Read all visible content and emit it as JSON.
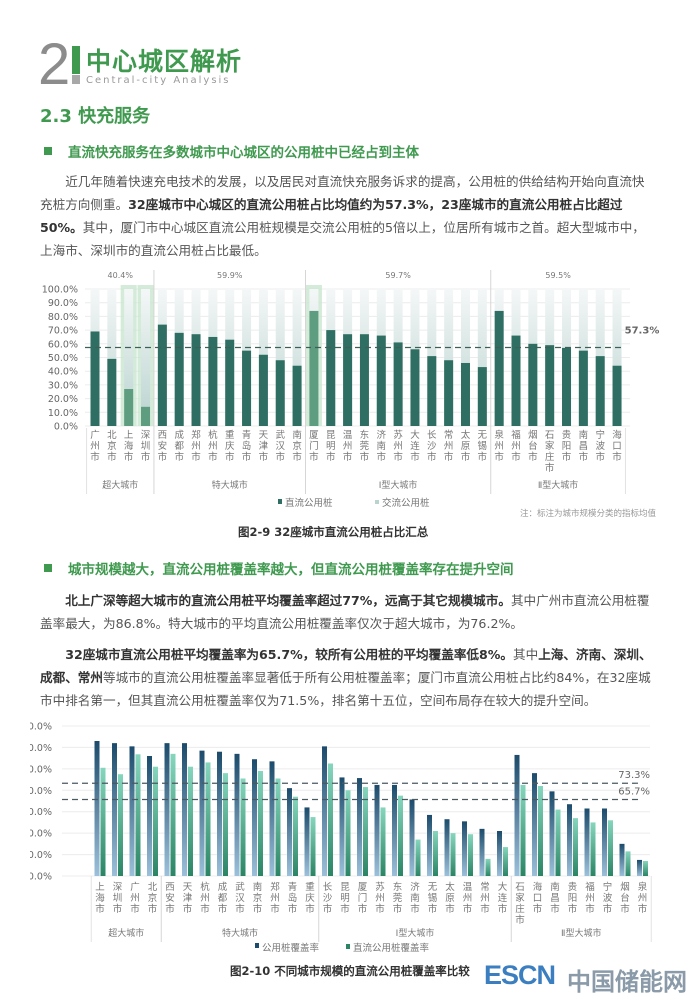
{
  "header": {
    "chapter_number": "2",
    "title": "中心城区解析",
    "subtitle": "Central-city Analysis"
  },
  "section_title": "2.3 快充服务",
  "subheading1": "直流快充服务在多数城市中心城区的公用桩中已经占到主体",
  "para1": {
    "t1": "近几年随着快速充电技术的发展，以及居民对直流快充服务诉求的提高，公用桩的供给结构开始向直流快充桩方向侧重。",
    "b1": "32座城市中心城区的直流公用桩占比均值约为57.3%，23座城市的直流公用桩占比超过50%。",
    "t2": "其中，厦门市中心城区直流公用桩规模是交流公用桩的5倍以上，位居所有城市之首。超大型城市中，上海市、深圳市的直流公用桩占比最低。"
  },
  "subheading2": "城市规模越大，直流公用桩覆盖率越大，但直流公用桩覆盖率存在提升空间",
  "para2": {
    "b1": "北上广深等超大城市的直流公用桩平均覆盖率超过77%，远高于其它规模城市。",
    "t1": "其中广州市直流公用桩覆盖率最大，为86.8%。特大城市的平均直流公用桩覆盖率仅次于超大城市，为76.2%。"
  },
  "para3": {
    "b1": "32座城市直流公用桩平均覆盖率为65.7%，较所有公用桩的平均覆盖率低8%。",
    "t1": "其中",
    "b2": "上海、济南、深圳、成都、常州",
    "t2": "等城市的直流公用桩覆盖率显著低于所有公用桩覆盖率；厦门市直流公用桩占比约84%，在32座城市中排名第一，但其直流公用桩覆盖率仅为71.5%，排名第十五位，空间布局存在较大的提升空间。"
  },
  "chart_data": [
    {
      "type": "bar",
      "title": "图2-9 32座城市直流公用桩占比汇总",
      "ylim": [
        0,
        100
      ],
      "yticks": [
        "0.0%",
        "10.0%",
        "20.0%",
        "30.0%",
        "40.0%",
        "50.0%",
        "60.0%",
        "70.0%",
        "80.0%",
        "90.0%",
        "100.0%"
      ],
      "stacked": true,
      "categories": [
        "广州市",
        "北京市",
        "上海市",
        "深圳市",
        "西安市",
        "成都市",
        "郑州市",
        "杭州市",
        "重庆市",
        "青岛市",
        "天津市",
        "武汉市",
        "南京市",
        "厦门市",
        "昆明市",
        "温州市",
        "东莞市",
        "济南市",
        "苏州市",
        "大连市",
        "长沙市",
        "常州市",
        "太原市",
        "无锡市",
        "泉州市",
        "福州市",
        "烟台市",
        "石家庄市",
        "贵阳市",
        "南昌市",
        "宁波市",
        "海口市"
      ],
      "series": [
        {
          "name": "直流公用桩",
          "values": [
            69,
            49,
            27,
            14,
            74,
            68,
            67,
            65,
            63,
            55,
            52,
            48,
            44,
            84,
            70,
            67,
            67,
            66,
            61,
            56,
            51,
            48,
            46,
            43,
            84,
            66,
            60,
            59,
            57,
            55,
            51,
            44
          ]
        },
        {
          "name": "交流公用桩",
          "values": [
            31,
            51,
            73,
            86,
            26,
            32,
            33,
            35,
            37,
            45,
            48,
            52,
            56,
            16,
            30,
            33,
            33,
            34,
            39,
            44,
            49,
            52,
            54,
            57,
            16,
            34,
            40,
            41,
            43,
            45,
            49,
            56
          ]
        }
      ],
      "highlighted": [
        "上海市",
        "深圳市",
        "厦门市"
      ],
      "groups": [
        {
          "name": "超大城市",
          "count": 4,
          "avg_label": "40.4%"
        },
        {
          "name": "特大城市",
          "count": 9,
          "avg_label": "59.9%"
        },
        {
          "name": "Ⅰ型大城市",
          "count": 11,
          "avg_label": "59.7%"
        },
        {
          "name": "Ⅱ型大城市",
          "count": 8,
          "avg_label": "59.5%"
        }
      ],
      "reference_line": {
        "value": 57.3,
        "label": "57.3%"
      },
      "note": "注：标注为城市规模分类的指标均值",
      "legend_position": "bottom",
      "colors": {
        "dc": "#2f6e62",
        "ac": "#dfe9e7",
        "highlight": "#c9e6cf",
        "reference": "#3d5f57"
      }
    },
    {
      "type": "bar",
      "title": "图2-10 不同城市规模的直流公用桩覆盖率比较",
      "ylim": [
        30,
        100
      ],
      "yticks": [
        "30.0%",
        "40.0%",
        "50.0%",
        "60.0%",
        "70.0%",
        "80.0%",
        "90.0%",
        "100.0%"
      ],
      "categories": [
        "上海市",
        "深圳市",
        "广州市",
        "北京市",
        "西安市",
        "天津市",
        "杭州市",
        "成都市",
        "武汉市",
        "南京市",
        "郑州市",
        "青岛市",
        "重庆市",
        "长沙市",
        "昆明市",
        "厦门市",
        "苏州市",
        "东莞市",
        "济南市",
        "无锡市",
        "太原市",
        "温州市",
        "常州市",
        "大连市",
        "石家庄市",
        "海口市",
        "南昌市",
        "贵阳市",
        "福州市",
        "宁波市",
        "烟台市",
        "泉州市"
      ],
      "series": [
        {
          "name": "公用桩覆盖率",
          "values": [
            93,
            92,
            90.5,
            86,
            92,
            92,
            88.5,
            88,
            87,
            84.5,
            83.5,
            71,
            62,
            90.5,
            76,
            75.7,
            72.5,
            72.5,
            65.7,
            58.5,
            56.5,
            55.5,
            52,
            51,
            86.5,
            78,
            69.5,
            63.5,
            61.5,
            61.5,
            45,
            37.5
          ]
        },
        {
          "name": "直流公用桩覆盖率",
          "values": [
            80.5,
            77.5,
            86.8,
            81,
            87,
            81,
            83,
            78,
            75.5,
            79,
            75.5,
            67,
            57.5,
            82.5,
            70,
            71.5,
            62,
            67.5,
            47,
            51,
            50,
            49.5,
            38,
            43.5,
            72.5,
            72,
            61,
            57,
            55,
            56,
            41.5,
            37
          ]
        }
      ],
      "groups": [
        {
          "name": "超大城市",
          "count": 4
        },
        {
          "name": "特大城市",
          "count": 9
        },
        {
          "name": "Ⅰ型大城市",
          "count": 11
        },
        {
          "name": "Ⅱ型大城市",
          "count": 8
        }
      ],
      "reference_lines": [
        {
          "value": 73.3,
          "label": "73.3%"
        },
        {
          "value": 65.7,
          "label": "65.7%"
        }
      ],
      "legend_position": "bottom",
      "colors": {
        "all_top": "#1c4b6b",
        "all_bottom": "#9cc0da",
        "dc_top": "#86d6bd",
        "dc_bottom": "#2b8565",
        "reference": "#4a5a60"
      }
    }
  ],
  "watermark": {
    "brand": "ESCN",
    "name": "中国储能网"
  }
}
